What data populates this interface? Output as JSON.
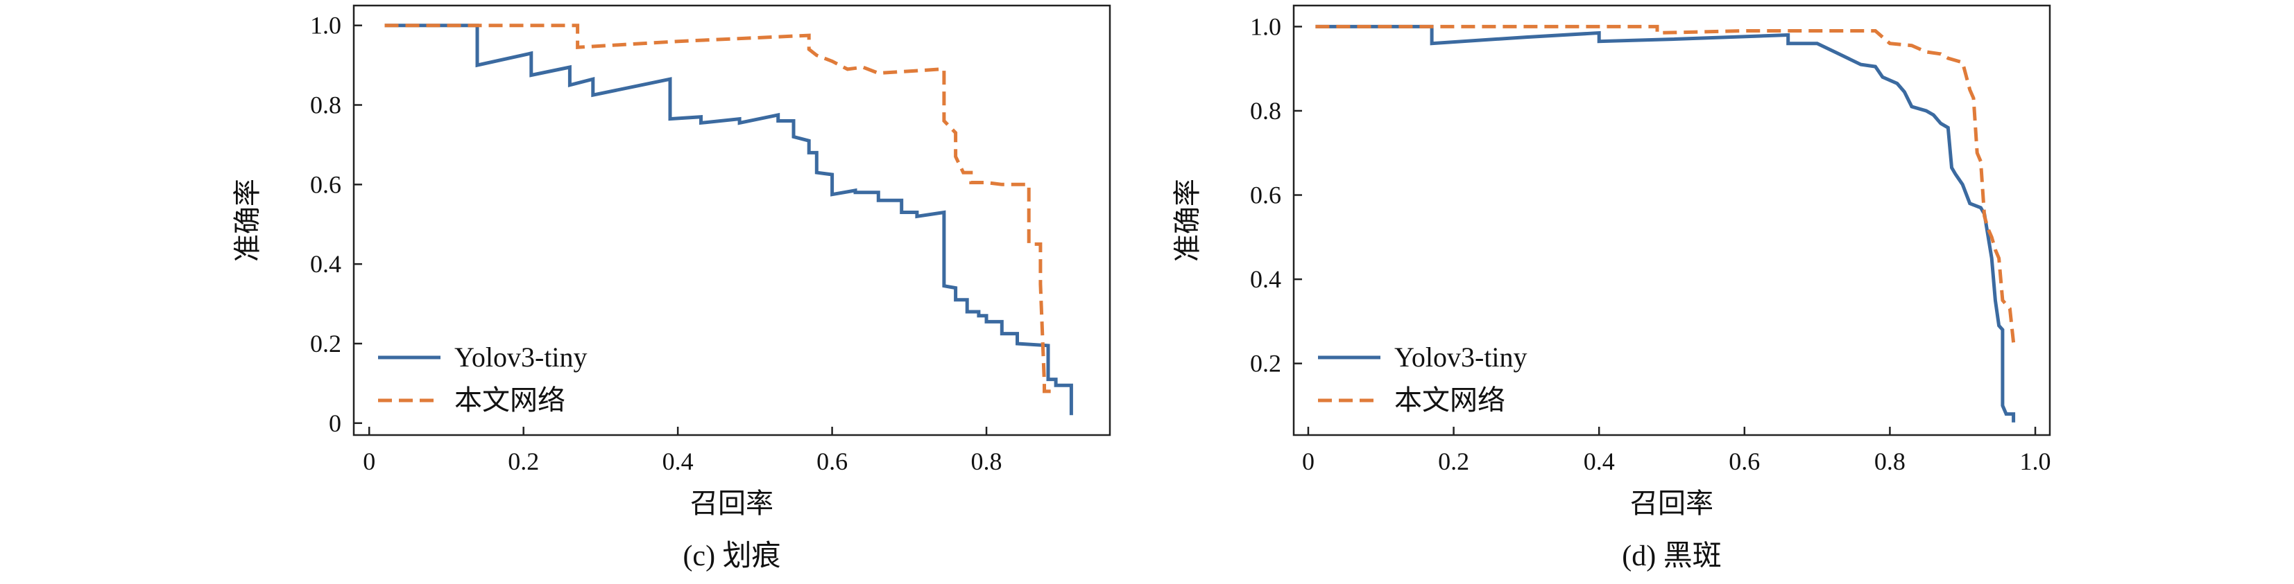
{
  "chart_data": [
    {
      "type": "line",
      "caption": "(c) 划痕",
      "xlabel": "召回率",
      "ylabel": "准确率",
      "xlim": [
        -0.02,
        0.96
      ],
      "ylim": [
        -0.03,
        1.05
      ],
      "xticks": [
        0,
        0.2,
        0.4,
        0.6,
        0.8
      ],
      "xtick_labels": [
        "0",
        "0.2",
        "0.4",
        "0.6",
        "0.8"
      ],
      "yticks": [
        0,
        0.2,
        0.4,
        0.6,
        0.8,
        1.0
      ],
      "ytick_labels": [
        "0",
        "0.2",
        "0.4",
        "0.6",
        "0.8",
        "1.0"
      ],
      "grid": false,
      "legend_position": "bottom-left",
      "series": [
        {
          "name": "Yolov3-tiny",
          "color": "#3b6aa0",
          "dash": "solid",
          "points": [
            [
              0.02,
              1.0
            ],
            [
              0.14,
              1.0
            ],
            [
              0.14,
              0.9
            ],
            [
              0.21,
              0.93
            ],
            [
              0.21,
              0.875
            ],
            [
              0.26,
              0.895
            ],
            [
              0.26,
              0.85
            ],
            [
              0.29,
              0.865
            ],
            [
              0.29,
              0.825
            ],
            [
              0.39,
              0.865
            ],
            [
              0.39,
              0.765
            ],
            [
              0.43,
              0.77
            ],
            [
              0.43,
              0.755
            ],
            [
              0.48,
              0.765
            ],
            [
              0.48,
              0.755
            ],
            [
              0.53,
              0.775
            ],
            [
              0.53,
              0.76
            ],
            [
              0.55,
              0.76
            ],
            [
              0.55,
              0.72
            ],
            [
              0.57,
              0.71
            ],
            [
              0.57,
              0.68
            ],
            [
              0.58,
              0.68
            ],
            [
              0.58,
              0.63
            ],
            [
              0.6,
              0.625
            ],
            [
              0.6,
              0.575
            ],
            [
              0.63,
              0.585
            ],
            [
              0.63,
              0.58
            ],
            [
              0.66,
              0.58
            ],
            [
              0.66,
              0.56
            ],
            [
              0.69,
              0.56
            ],
            [
              0.69,
              0.53
            ],
            [
              0.71,
              0.53
            ],
            [
              0.71,
              0.52
            ],
            [
              0.745,
              0.53
            ],
            [
              0.745,
              0.345
            ],
            [
              0.76,
              0.34
            ],
            [
              0.76,
              0.31
            ],
            [
              0.775,
              0.31
            ],
            [
              0.775,
              0.28
            ],
            [
              0.79,
              0.28
            ],
            [
              0.79,
              0.27
            ],
            [
              0.8,
              0.27
            ],
            [
              0.8,
              0.255
            ],
            [
              0.82,
              0.255
            ],
            [
              0.82,
              0.225
            ],
            [
              0.84,
              0.225
            ],
            [
              0.84,
              0.2
            ],
            [
              0.88,
              0.195
            ],
            [
              0.88,
              0.11
            ],
            [
              0.89,
              0.11
            ],
            [
              0.89,
              0.095
            ],
            [
              0.91,
              0.095
            ],
            [
              0.91,
              0.02
            ]
          ]
        },
        {
          "name": "本文网络",
          "color": "#e07b39",
          "dash": "dashed",
          "points": [
            [
              0.02,
              1.0
            ],
            [
              0.27,
              1.0
            ],
            [
              0.27,
              0.945
            ],
            [
              0.4,
              0.96
            ],
            [
              0.57,
              0.975
            ],
            [
              0.57,
              0.94
            ],
            [
              0.58,
              0.925
            ],
            [
              0.6,
              0.91
            ],
            [
              0.62,
              0.89
            ],
            [
              0.64,
              0.895
            ],
            [
              0.66,
              0.88
            ],
            [
              0.74,
              0.89
            ],
            [
              0.745,
              0.89
            ],
            [
              0.745,
              0.76
            ],
            [
              0.76,
              0.73
            ],
            [
              0.76,
              0.67
            ],
            [
              0.77,
              0.63
            ],
            [
              0.78,
              0.63
            ],
            [
              0.78,
              0.605
            ],
            [
              0.8,
              0.605
            ],
            [
              0.82,
              0.6
            ],
            [
              0.855,
              0.6
            ],
            [
              0.855,
              0.45
            ],
            [
              0.87,
              0.45
            ],
            [
              0.87,
              0.35
            ],
            [
              0.875,
              0.1
            ],
            [
              0.875,
              0.08
            ],
            [
              0.89,
              0.08
            ]
          ]
        }
      ]
    },
    {
      "type": "line",
      "caption": "(d) 黑斑",
      "xlabel": "召回率",
      "ylabel": "准确率",
      "xlim": [
        -0.02,
        1.02
      ],
      "ylim": [
        0.03,
        1.05
      ],
      "xticks": [
        0,
        0.2,
        0.4,
        0.6,
        0.8,
        1.0
      ],
      "xtick_labels": [
        "0",
        "0.2",
        "0.4",
        "0.6",
        "0.8",
        "1.0"
      ],
      "yticks": [
        0.2,
        0.4,
        0.6,
        0.8,
        1.0
      ],
      "ytick_labels": [
        "0.2",
        "0.4",
        "0.6",
        "0.8",
        "1.0"
      ],
      "grid": false,
      "legend_position": "bottom-left",
      "series": [
        {
          "name": "Yolov3-tiny",
          "color": "#3b6aa0",
          "dash": "solid",
          "points": [
            [
              0.01,
              1.0
            ],
            [
              0.17,
              1.0
            ],
            [
              0.17,
              0.96
            ],
            [
              0.3,
              0.975
            ],
            [
              0.4,
              0.985
            ],
            [
              0.4,
              0.965
            ],
            [
              0.5,
              0.97
            ],
            [
              0.66,
              0.98
            ],
            [
              0.66,
              0.96
            ],
            [
              0.7,
              0.96
            ],
            [
              0.73,
              0.935
            ],
            [
              0.76,
              0.91
            ],
            [
              0.78,
              0.905
            ],
            [
              0.79,
              0.88
            ],
            [
              0.81,
              0.865
            ],
            [
              0.82,
              0.845
            ],
            [
              0.83,
              0.81
            ],
            [
              0.85,
              0.8
            ],
            [
              0.86,
              0.79
            ],
            [
              0.87,
              0.77
            ],
            [
              0.88,
              0.76
            ],
            [
              0.885,
              0.665
            ],
            [
              0.89,
              0.65
            ],
            [
              0.9,
              0.625
            ],
            [
              0.91,
              0.58
            ],
            [
              0.925,
              0.57
            ],
            [
              0.93,
              0.555
            ],
            [
              0.94,
              0.45
            ],
            [
              0.945,
              0.35
            ],
            [
              0.95,
              0.29
            ],
            [
              0.955,
              0.28
            ],
            [
              0.955,
              0.1
            ],
            [
              0.96,
              0.08
            ],
            [
              0.97,
              0.08
            ],
            [
              0.97,
              0.06
            ]
          ]
        },
        {
          "name": "本文网络",
          "color": "#e07b39",
          "dash": "dashed",
          "points": [
            [
              0.01,
              1.0
            ],
            [
              0.48,
              1.0
            ],
            [
              0.48,
              0.985
            ],
            [
              0.6,
              0.99
            ],
            [
              0.78,
              0.99
            ],
            [
              0.79,
              0.975
            ],
            [
              0.8,
              0.96
            ],
            [
              0.83,
              0.955
            ],
            [
              0.85,
              0.94
            ],
            [
              0.87,
              0.935
            ],
            [
              0.88,
              0.925
            ],
            [
              0.9,
              0.915
            ],
            [
              0.91,
              0.85
            ],
            [
              0.915,
              0.83
            ],
            [
              0.92,
              0.7
            ],
            [
              0.925,
              0.68
            ],
            [
              0.93,
              0.55
            ],
            [
              0.935,
              0.52
            ],
            [
              0.94,
              0.5
            ],
            [
              0.945,
              0.47
            ],
            [
              0.95,
              0.45
            ],
            [
              0.955,
              0.35
            ],
            [
              0.965,
              0.33
            ],
            [
              0.97,
              0.25
            ]
          ]
        }
      ]
    }
  ]
}
